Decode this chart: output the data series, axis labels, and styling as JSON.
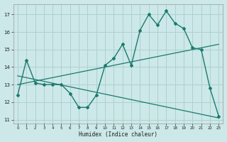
{
  "xlabel": "Humidex (Indice chaleur)",
  "background_color": "#cce8e8",
  "grid_color": "#b0d0d0",
  "line_color": "#1a7a6e",
  "xlim": [
    -0.5,
    23.5
  ],
  "ylim": [
    10.8,
    17.6
  ],
  "yticks": [
    11,
    12,
    13,
    14,
    15,
    16,
    17
  ],
  "xticks": [
    0,
    1,
    2,
    3,
    4,
    5,
    6,
    7,
    8,
    9,
    10,
    11,
    12,
    13,
    14,
    15,
    16,
    17,
    18,
    19,
    20,
    21,
    22,
    23
  ],
  "hours": [
    0,
    1,
    2,
    3,
    4,
    5,
    6,
    7,
    8,
    9,
    10,
    11,
    12,
    13,
    14,
    15,
    16,
    17,
    18,
    19,
    20,
    21,
    22,
    23
  ],
  "main_curve": [
    12.4,
    14.4,
    13.1,
    13.0,
    13.0,
    13.0,
    12.5,
    11.7,
    11.7,
    12.4,
    14.1,
    14.5,
    15.3,
    14.1,
    16.1,
    17.0,
    16.4,
    17.2,
    16.5,
    16.2,
    15.1,
    15.0,
    12.8,
    11.2
  ],
  "upper_line_x": [
    0,
    23
  ],
  "upper_line_y": [
    13.0,
    15.3
  ],
  "lower_line_x": [
    0,
    23
  ],
  "lower_line_y": [
    13.5,
    11.1
  ]
}
